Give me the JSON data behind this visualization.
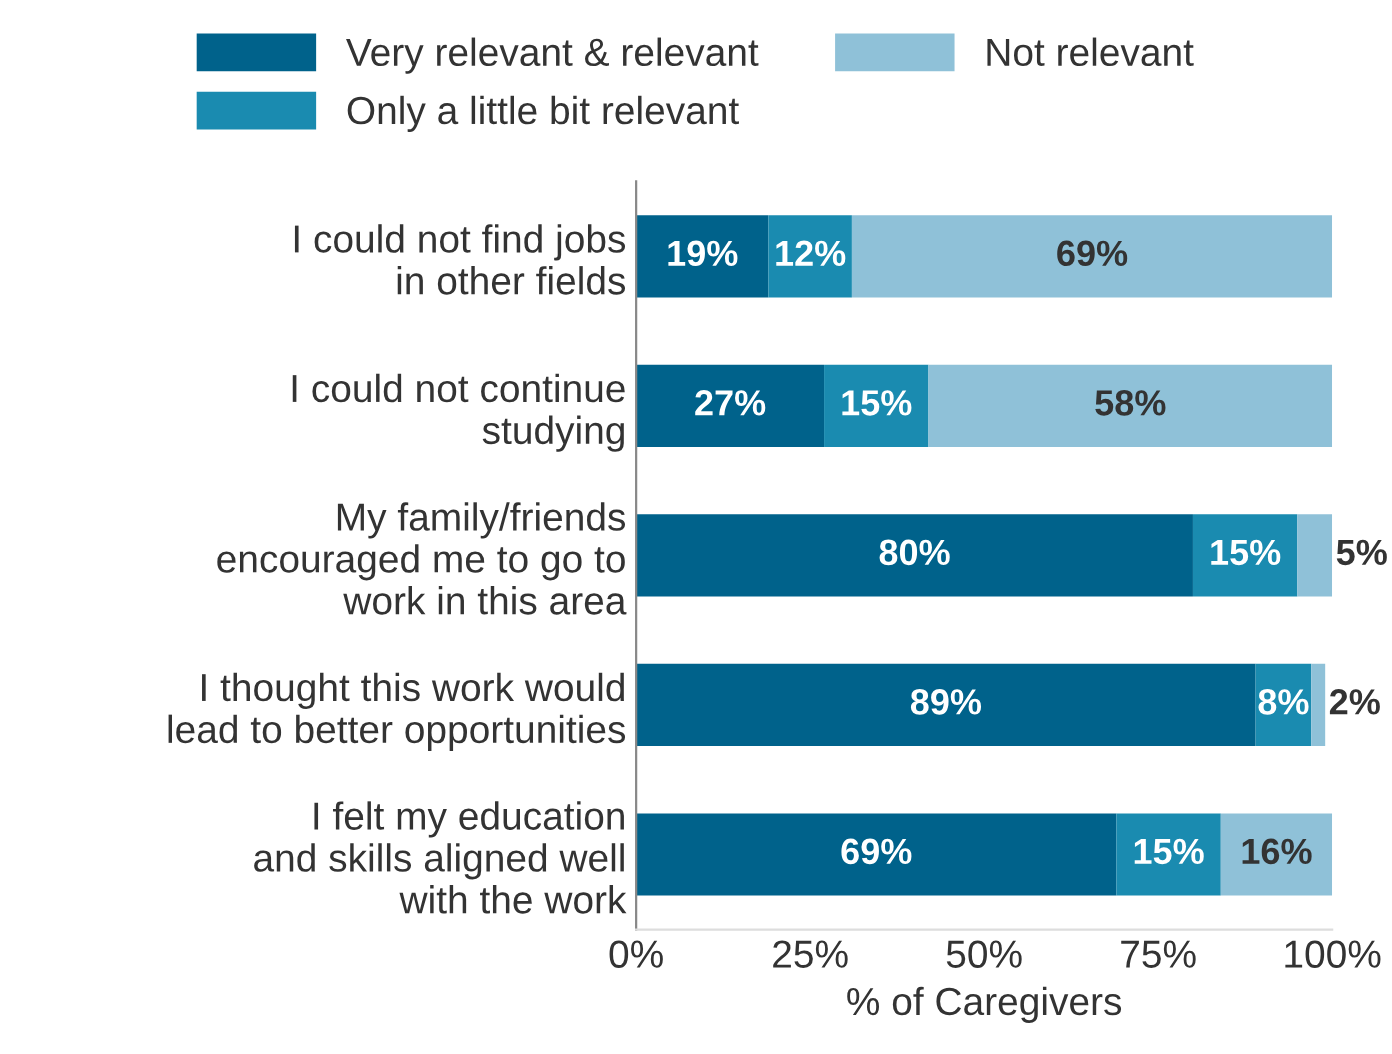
{
  "chart_data": {
    "type": "bar",
    "orientation": "horizontal",
    "stacked": true,
    "categories": [
      "I could not find jobs\nin other fields",
      "I could not continue\nstudying",
      "My family/friends\nencouraged me to go to\nwork in this area",
      "I thought this work would\nlead to better opportunities",
      "I felt my education\nand skills aligned well\nwith the work"
    ],
    "series": [
      {
        "name": "Very relevant & relevant",
        "color": "#00628b",
        "values": [
          19,
          27,
          80,
          89,
          69
        ],
        "value_labels": [
          "19%",
          "27%",
          "80%",
          "89%",
          "69%"
        ]
      },
      {
        "name": "Only a little bit relevant",
        "color": "#1a8bb0",
        "values": [
          12,
          15,
          15,
          8,
          15
        ],
        "value_labels": [
          "12%",
          "15%",
          "15%",
          "8%",
          "15%"
        ]
      },
      {
        "name": "Not relevant",
        "color": "#8fc1d8",
        "values": [
          69,
          58,
          5,
          2,
          16
        ],
        "value_labels": [
          "69%",
          "58%",
          "5%",
          "2%",
          "16%"
        ]
      }
    ],
    "xlim": [
      0,
      100
    ],
    "xticks": [
      {
        "value": 0,
        "label": "0%"
      },
      {
        "value": 25,
        "label": "25%"
      },
      {
        "value": 50,
        "label": "50%"
      },
      {
        "value": 75,
        "label": "75%"
      },
      {
        "value": 100,
        "label": "100%"
      }
    ],
    "xlabel": "% of Caregivers",
    "legend": "top",
    "grid": false
  }
}
